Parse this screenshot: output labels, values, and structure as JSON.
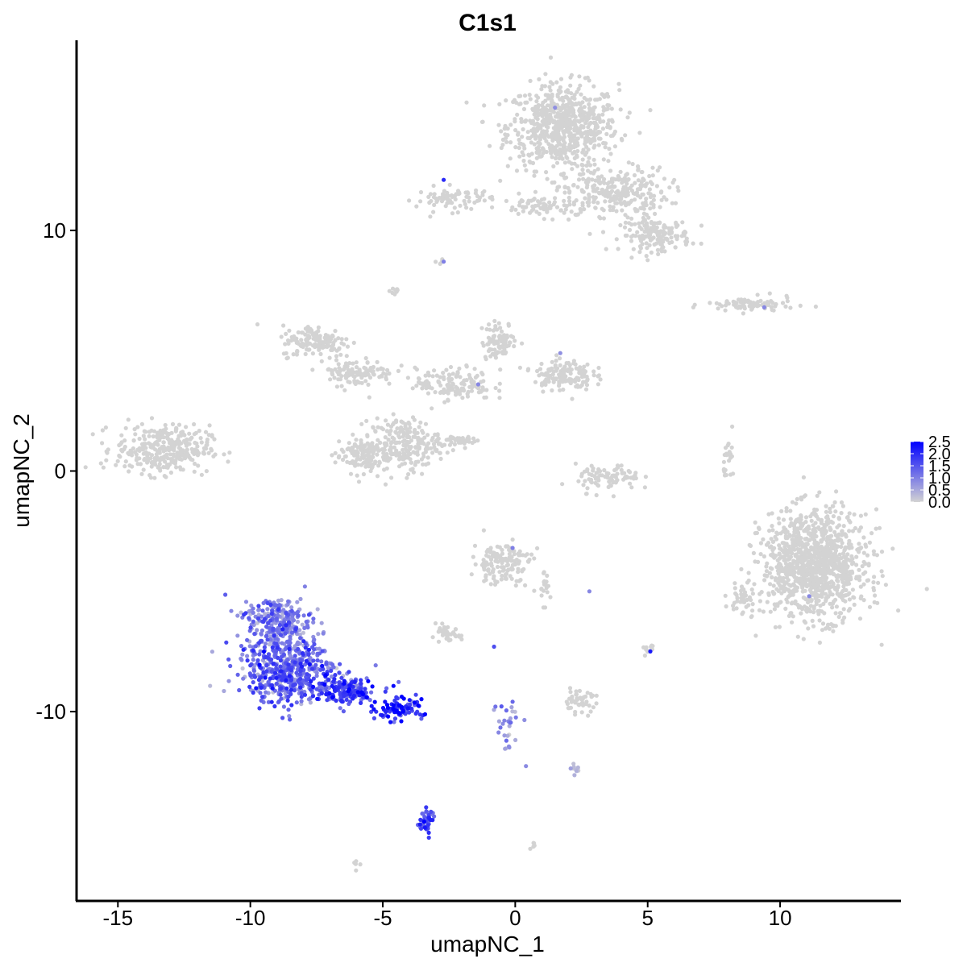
{
  "chart_data": {
    "type": "scatter",
    "title": "C1s1",
    "xlabel": "umapNC_1",
    "ylabel": "umapNC_2",
    "xlim": [
      -16.5,
      14.5
    ],
    "ylim": [
      -17.8,
      17.9
    ],
    "xticks": [
      -15,
      -10,
      -5,
      0,
      5,
      10
    ],
    "xtick_labels": [
      "-15",
      "-10",
      "-5",
      "0",
      "5",
      "10"
    ],
    "yticks": [
      -10,
      0,
      10
    ],
    "ytick_labels": [
      "-10",
      "0",
      "10"
    ],
    "grid": false,
    "legend": {
      "placement": "right",
      "type": "colorbar",
      "min": 0.0,
      "max": 2.5,
      "ticks": [
        0.0,
        0.5,
        1.0,
        1.5,
        2.0,
        2.5
      ],
      "tick_labels": [
        "0.0",
        "0.5",
        "1.0",
        "1.5",
        "2.0",
        "2.5"
      ],
      "color_low": "#d3d3d3",
      "color_high": "#0000ff"
    },
    "clusters": [
      {
        "cx": 1.8,
        "cy": 14.3,
        "rx": 1.9,
        "ry": 1.6,
        "n": 700,
        "expr": 0
      },
      {
        "cx": 3.8,
        "cy": 11.6,
        "rx": 1.8,
        "ry": 0.9,
        "n": 260,
        "expr": 0
      },
      {
        "cx": 5.3,
        "cy": 9.8,
        "rx": 1.2,
        "ry": 0.6,
        "n": 160,
        "expr": 0
      },
      {
        "cx": -2.3,
        "cy": 11.3,
        "rx": 1.3,
        "ry": 0.45,
        "n": 80,
        "expr": 0
      },
      {
        "cx": 1.1,
        "cy": 11.0,
        "rx": 1.5,
        "ry": 0.4,
        "n": 70,
        "expr": 0
      },
      {
        "cx": -2.8,
        "cy": 8.7,
        "rx": 0.15,
        "ry": 0.15,
        "n": 4,
        "expr": 0
      },
      {
        "cx": 8.9,
        "cy": 6.9,
        "rx": 1.5,
        "ry": 0.3,
        "n": 80,
        "expr": 0
      },
      {
        "cx": -4.5,
        "cy": 7.5,
        "rx": 0.2,
        "ry": 0.2,
        "n": 8,
        "expr": 0
      },
      {
        "cx": -13.3,
        "cy": 0.9,
        "rx": 1.6,
        "ry": 0.9,
        "n": 330,
        "expr": 0
      },
      {
        "cx": -7.5,
        "cy": 5.4,
        "rx": 1.2,
        "ry": 0.6,
        "n": 140,
        "expr": 0
      },
      {
        "cx": -6.0,
        "cy": 4.1,
        "rx": 1.3,
        "ry": 0.5,
        "n": 110,
        "expr": 0
      },
      {
        "cx": -4.2,
        "cy": 1.1,
        "rx": 1.2,
        "ry": 1.0,
        "n": 220,
        "expr": 0
      },
      {
        "cx": -5.8,
        "cy": 0.7,
        "rx": 0.9,
        "ry": 0.7,
        "n": 130,
        "expr": 0
      },
      {
        "cx": -2.3,
        "cy": 3.6,
        "rx": 1.3,
        "ry": 0.6,
        "n": 140,
        "expr": 0
      },
      {
        "cx": -0.6,
        "cy": 5.4,
        "rx": 0.6,
        "ry": 0.7,
        "n": 90,
        "expr": 0
      },
      {
        "cx": 1.8,
        "cy": 4.0,
        "rx": 1.0,
        "ry": 0.6,
        "n": 140,
        "expr": 0
      },
      {
        "cx": -2.2,
        "cy": 1.3,
        "rx": 0.9,
        "ry": 0.2,
        "n": 40,
        "expr": 0
      },
      {
        "cx": 3.5,
        "cy": -0.3,
        "rx": 1.1,
        "ry": 0.5,
        "n": 90,
        "expr": 0
      },
      {
        "cx": 8.1,
        "cy": 0.5,
        "rx": 0.2,
        "ry": 0.9,
        "n": 25,
        "expr": 0
      },
      {
        "cx": 11.3,
        "cy": -3.9,
        "rx": 1.8,
        "ry": 2.0,
        "n": 1100,
        "expr": 0
      },
      {
        "cx": 8.6,
        "cy": -5.3,
        "rx": 0.5,
        "ry": 0.7,
        "n": 40,
        "expr": 0
      },
      {
        "cx": -0.5,
        "cy": -3.8,
        "rx": 1.0,
        "ry": 0.8,
        "n": 140,
        "expr": 0
      },
      {
        "cx": 1.0,
        "cy": -4.9,
        "rx": 0.3,
        "ry": 0.6,
        "n": 20,
        "expr": 0
      },
      {
        "cx": -2.6,
        "cy": -6.8,
        "rx": 0.5,
        "ry": 0.3,
        "n": 40,
        "expr": 0
      },
      {
        "cx": 2.4,
        "cy": -9.6,
        "rx": 0.6,
        "ry": 0.4,
        "n": 50,
        "expr": 0
      },
      {
        "cx": 5.0,
        "cy": -7.4,
        "rx": 0.2,
        "ry": 0.3,
        "n": 10,
        "expr": 0
      },
      {
        "cx": 2.3,
        "cy": -12.4,
        "rx": 0.2,
        "ry": 0.2,
        "n": 10,
        "expr": 0.3
      },
      {
        "cx": 0.7,
        "cy": -15.5,
        "rx": 0.15,
        "ry": 0.15,
        "n": 5,
        "expr": 0
      },
      {
        "cx": -6.0,
        "cy": -16.4,
        "rx": 0.15,
        "ry": 0.15,
        "n": 5,
        "expr": 0
      },
      {
        "cx": -8.9,
        "cy": -6.3,
        "rx": 1.1,
        "ry": 1.0,
        "n": 260,
        "expr": 1.0
      },
      {
        "cx": -8.6,
        "cy": -8.3,
        "rx": 1.7,
        "ry": 1.2,
        "n": 520,
        "expr": 1.2
      },
      {
        "cx": -6.4,
        "cy": -9.1,
        "rx": 1.1,
        "ry": 0.5,
        "n": 160,
        "expr": 1.6
      },
      {
        "cx": -4.4,
        "cy": -9.9,
        "rx": 0.8,
        "ry": 0.4,
        "n": 90,
        "expr": 2.0
      },
      {
        "cx": -3.4,
        "cy": -14.6,
        "rx": 0.3,
        "ry": 0.5,
        "n": 45,
        "expr": 1.6
      },
      {
        "cx": -0.3,
        "cy": -10.6,
        "rx": 0.5,
        "ry": 1.0,
        "n": 30,
        "expr": 0.7
      }
    ],
    "highlight_points": [
      {
        "x": 1.5,
        "y": 15.1,
        "v": 0.8
      },
      {
        "x": -2.7,
        "y": 12.1,
        "v": 2.0
      },
      {
        "x": -2.7,
        "y": 8.7,
        "v": 1.0
      },
      {
        "x": 9.4,
        "y": 6.8,
        "v": 0.9
      },
      {
        "x": 1.7,
        "y": 4.9,
        "v": 0.8
      },
      {
        "x": -1.4,
        "y": 3.6,
        "v": 0.9
      },
      {
        "x": -0.1,
        "y": -3.2,
        "v": 1.0
      },
      {
        "x": 11.1,
        "y": -5.2,
        "v": 0.9
      },
      {
        "x": 2.8,
        "y": -5.0,
        "v": 0.9
      },
      {
        "x": 5.1,
        "y": -7.5,
        "v": 2.2
      },
      {
        "x": -0.8,
        "y": -7.3,
        "v": 1.6
      },
      {
        "x": -4.3,
        "y": -10.4,
        "v": 2.5
      },
      {
        "x": -4.8,
        "y": -10.2,
        "v": 2.5
      },
      {
        "x": -5.3,
        "y": -9.6,
        "v": 2.4
      }
    ]
  }
}
